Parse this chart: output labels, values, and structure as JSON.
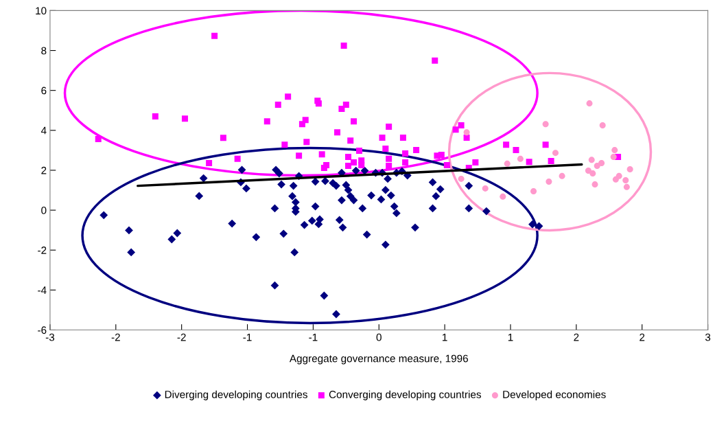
{
  "chart_data": {
    "type": "scatter",
    "xlabel": "Aggregate governance measure, 1996",
    "xlim": [
      -3,
      3
    ],
    "xticks": [
      -3,
      {
        "value": -2.4,
        "label": "-2"
      },
      {
        "value": -1.8,
        "label": "-2"
      },
      {
        "value": -1.2,
        "label": "-1"
      },
      {
        "value": -0.6,
        "label": "-1"
      },
      0,
      {
        "value": 0.6,
        "label": "1"
      },
      {
        "value": 1.2,
        "label": "1"
      },
      {
        "value": 1.8,
        "label": "2"
      },
      {
        "value": 2.4,
        "label": "2"
      },
      3
    ],
    "ylim": [
      -6,
      10
    ],
    "yticks": [
      -6,
      -4,
      -2,
      0,
      2,
      4,
      6,
      8,
      10
    ],
    "grid": false,
    "legend": "bottom",
    "series": [
      {
        "name": "Diverging developing countries",
        "color": "#000080",
        "marker": "diamond",
        "x": [
          -2.51,
          -2.28,
          -2.26,
          -1.89,
          -1.84,
          -1.6,
          -1.64,
          -1.34,
          -1.25,
          -1.26,
          -1.21,
          -1.12,
          -0.94,
          -0.91,
          -0.89,
          -0.95,
          -0.95,
          -0.73,
          -0.78,
          -0.79,
          -0.76,
          -0.76,
          -0.76,
          -0.87,
          -0.68,
          -0.61,
          -0.55,
          -0.54,
          -0.58,
          -0.58,
          -0.49,
          -0.5,
          -0.39,
          -0.77,
          -0.42,
          -0.39,
          -0.34,
          -0.3,
          -0.28,
          -0.26,
          -0.23,
          -0.34,
          -0.36,
          -0.33,
          -0.21,
          -0.13,
          -0.15,
          -0.07,
          -0.11,
          -0.03,
          0.03,
          0.02,
          0.06,
          0.08,
          0.06,
          0.11,
          0.14,
          0.16,
          0.16,
          0.21,
          0.26,
          0.33,
          0.49,
          0.52,
          0.49,
          0.56,
          0.82,
          0.82,
          0.98,
          1.4,
          1.46
        ],
        "values": [
          -0.25,
          -1.01,
          -2.11,
          -1.46,
          -1.15,
          1.6,
          0.71,
          -0.67,
          2.02,
          1.4,
          1.09,
          -1.35,
          2.02,
          1.84,
          1.29,
          0.09,
          -3.77,
          1.71,
          1.22,
          0.7,
          0.4,
          0.09,
          -0.08,
          -1.18,
          -0.74,
          -0.53,
          -0.7,
          -0.46,
          1.43,
          0.19,
          1.46,
          -4.28,
          -5.21,
          -2.11,
          1.36,
          1.22,
          1.87,
          1.26,
          1.01,
          0.7,
          0.5,
          0.5,
          -0.49,
          -0.87,
          1.98,
          1.98,
          0.09,
          0.74,
          -1.22,
          1.87,
          1.87,
          0.54,
          -1.73,
          1.57,
          1.01,
          0.74,
          0.19,
          -0.15,
          1.87,
          1.95,
          1.74,
          -0.87,
          1.4,
          0.7,
          0.09,
          1.05,
          1.22,
          0.09,
          -0.05,
          -0.71,
          -0.8
        ]
      },
      {
        "name": "Converging developing countries",
        "color": "#ff00ff",
        "marker": "square",
        "x": [
          -2.56,
          -2.04,
          -1.77,
          -1.5,
          -1.42,
          -1.55,
          -1.29,
          -1.02,
          -0.92,
          -0.83,
          -0.86,
          -0.73,
          -0.7,
          -0.67,
          -0.66,
          -0.56,
          -0.55,
          -0.52,
          -0.5,
          -0.48,
          -0.38,
          -0.34,
          -0.3,
          -0.32,
          -0.26,
          -0.23,
          -0.18,
          -0.28,
          -0.28,
          -0.23,
          -0.16,
          -0.16,
          0.03,
          0.09,
          0.06,
          0.09,
          0.09,
          0.22,
          0.24,
          0.24,
          0.34,
          0.51,
          0.53,
          0.57,
          0.62,
          0.7,
          0.75,
          0.8,
          0.82,
          0.88,
          1.16,
          1.25,
          1.37,
          1.52,
          1.57,
          2.18
        ],
        "values": [
          3.56,
          4.7,
          4.59,
          8.73,
          3.62,
          2.36,
          2.57,
          4.45,
          5.28,
          5.69,
          3.28,
          2.73,
          4.31,
          4.52,
          3.42,
          5.48,
          5.34,
          2.8,
          2.12,
          2.26,
          3.9,
          5.08,
          5.28,
          8.24,
          3.49,
          4.45,
          2.98,
          2.67,
          2.22,
          2.39,
          2.49,
          2.26,
          3.63,
          4.18,
          3.08,
          2.57,
          2.22,
          3.63,
          2.84,
          2.39,
          3.01,
          7.49,
          2.73,
          2.77,
          2.26,
          4.04,
          4.25,
          3.63,
          2.12,
          2.39,
          3.28,
          3.01,
          2.42,
          3.28,
          2.46,
          2.67
        ]
      },
      {
        "name": "Developed economies",
        "color": "#ff99cc",
        "marker": "circle",
        "x": [
          0.8,
          0.75,
          1.92,
          2.04,
          1.52,
          1.61,
          1.29,
          1.17,
          1.64,
          1.67,
          1.55,
          1.41,
          1.13,
          0.97,
          1.94,
          1.91,
          1.95,
          1.99,
          2.03,
          1.97,
          2.15,
          2.14,
          2.29,
          2.19,
          2.16,
          2.25,
          2.26
        ],
        "values": [
          3.9,
          1.57,
          5.35,
          4.25,
          4.31,
          2.87,
          2.57,
          2.33,
          null,
          1.71,
          1.43,
          0.95,
          0.68,
          1.09,
          2.52,
          1.98,
          1.84,
          2.22,
          2.36,
          1.29,
          3.01,
          2.67,
          2.05,
          1.71,
          1.54,
          1.5,
          1.16
        ]
      },
      {
        "type": "line",
        "color": "#000000",
        "x": [
          -2.2,
          1.85
        ],
        "values": [
          1.22,
          2.29
        ]
      }
    ]
  }
}
